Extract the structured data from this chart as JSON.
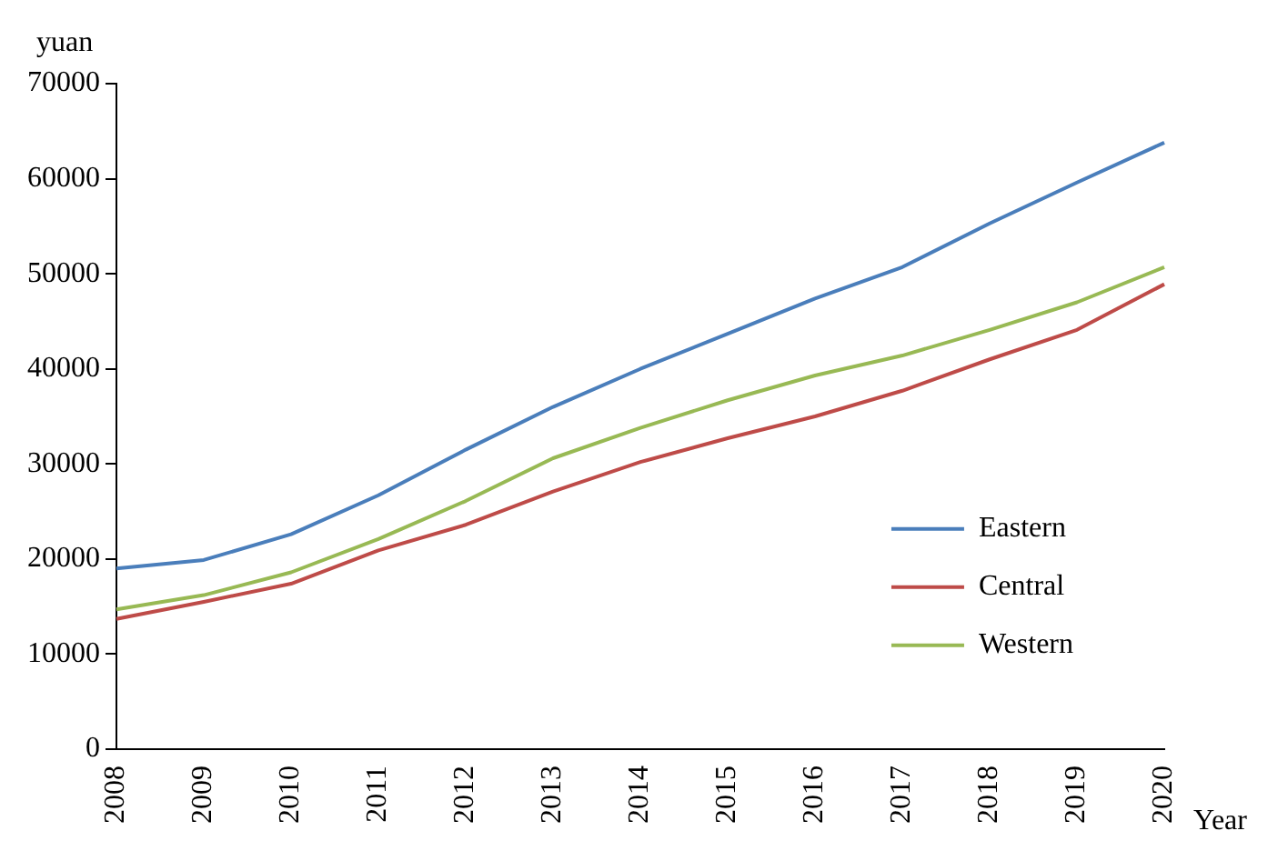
{
  "chart_data": {
    "type": "line",
    "xlabel": "Year",
    "ylabel": "yuan",
    "categories": [
      "2008",
      "2009",
      "2010",
      "2011",
      "2012",
      "2013",
      "2014",
      "2015",
      "2016",
      "2017",
      "2018",
      "2019",
      "2020"
    ],
    "series": [
      {
        "name": "Eastern",
        "color": "#4a7ebb",
        "values": [
          19000,
          19900,
          22600,
          26700,
          31500,
          36000,
          40000,
          43700,
          47400,
          50700,
          55300,
          59600,
          63800
        ]
      },
      {
        "name": "Central",
        "color": "#be4b48",
        "values": [
          13700,
          15500,
          17400,
          20900,
          23600,
          27100,
          30200,
          32700,
          35000,
          37700,
          41000,
          44100,
          48900
        ]
      },
      {
        "name": "Western",
        "color": "#98b954",
        "values": [
          14700,
          16200,
          18600,
          22100,
          26100,
          30600,
          33800,
          36700,
          39300,
          41400,
          44100,
          47000,
          50700
        ]
      }
    ],
    "ylim": [
      0,
      70000
    ],
    "yticks": [
      0,
      10000,
      20000,
      30000,
      40000,
      50000,
      60000,
      70000
    ],
    "grid": false,
    "legend": "right",
    "marker": "none",
    "line_style": "solid"
  }
}
